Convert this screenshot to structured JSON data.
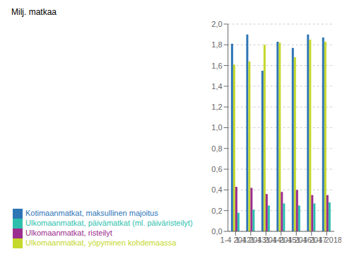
{
  "chart_data": {
    "type": "bar",
    "annotations": [
      "Milj. matkaa"
    ],
    "categories": [
      "1-4 2012",
      "1-4 2013",
      "1-4 2014",
      "1-4 2015",
      "1-4 2016",
      "1-4 2017",
      "1-4 2018"
    ],
    "series": [
      {
        "name": "Kotimaanmatkat, maksullinen majoitus",
        "color": "#2E75B6",
        "values": [
          1.81,
          1.9,
          1.55,
          1.83,
          1.77,
          1.9,
          1.87
        ]
      },
      {
        "name": "Ulkomaanmatkat, yöpyminen kohdemaassa",
        "color": "#C5D82D",
        "values": [
          1.61,
          1.64,
          1.8,
          1.82,
          1.68,
          1.85,
          1.83
        ]
      },
      {
        "name": "Ulkomaanmatkat, risteilyt",
        "color": "#9B2D8E",
        "values": [
          0.43,
          0.42,
          0.36,
          0.38,
          0.4,
          0.35,
          0.35
        ]
      },
      {
        "name": "Ulkomaanmatkat, päivämatkat (ml. päiväristeilyt)",
        "color": "#2DBFAD",
        "values": [
          0.18,
          0.21,
          0.25,
          0.27,
          0.25,
          0.27,
          0.28
        ]
      }
    ],
    "ylim": [
      0.0,
      2.0
    ],
    "yticks": [
      {
        "value": 0.0,
        "label": "0,0"
      },
      {
        "value": 0.2,
        "label": "0,2"
      },
      {
        "value": 0.4,
        "label": "0,4"
      },
      {
        "value": 0.6,
        "label": "0,6"
      },
      {
        "value": 0.8,
        "label": "0,8"
      },
      {
        "value": 1.0,
        "label": "1,0"
      },
      {
        "value": 1.2,
        "label": "1,2"
      },
      {
        "value": 1.4,
        "label": "1,4"
      },
      {
        "value": 1.6,
        "label": "1,6"
      },
      {
        "value": 1.8,
        "label": "1,8"
      },
      {
        "value": 2.0,
        "label": "2,0"
      }
    ],
    "grid": true,
    "legend": "lower left"
  }
}
